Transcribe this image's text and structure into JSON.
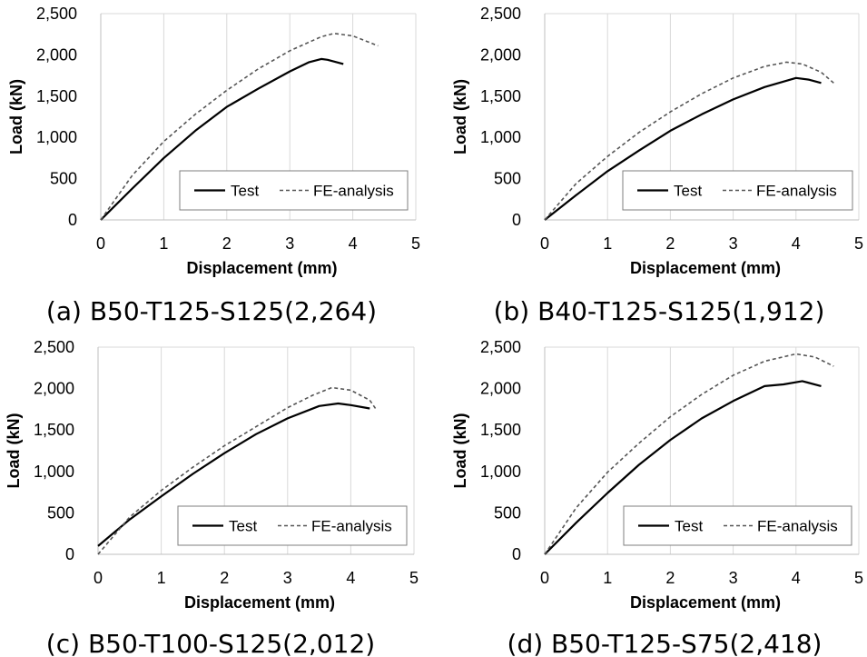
{
  "chart_data": [
    {
      "type": "line",
      "caption": "(a) B50-T125-S125(2,264)",
      "xlabel": "Displacement (mm)",
      "ylabel": "Load (kN)",
      "xlim": [
        0,
        5
      ],
      "ylim": [
        0,
        2500
      ],
      "xticks": [
        "0",
        "1",
        "2",
        "3",
        "4",
        "5"
      ],
      "yticks": [
        "0",
        "500",
        "1,000",
        "1,500",
        "2,000",
        "2,500"
      ],
      "grid": "vertical",
      "legend_position": "lower-right",
      "series": [
        {
          "name": "Test",
          "style": "solid",
          "color": "#000000",
          "x": [
            0,
            0.5,
            1,
            1.5,
            2,
            2.5,
            3,
            3.3,
            3.5,
            3.6,
            3.85
          ],
          "y": [
            0,
            380,
            750,
            1080,
            1370,
            1590,
            1800,
            1910,
            1950,
            1940,
            1890
          ]
        },
        {
          "name": "FE-analysis",
          "style": "dashed",
          "color": "#555555",
          "x": [
            0,
            0.5,
            1,
            1.5,
            2,
            2.5,
            3,
            3.5,
            3.7,
            4.0,
            4.4
          ],
          "y": [
            0,
            540,
            950,
            1280,
            1570,
            1830,
            2050,
            2220,
            2260,
            2230,
            2110
          ]
        }
      ]
    },
    {
      "type": "line",
      "caption": "(b) B40-T125-S125(1,912)",
      "xlabel": "Displacement (mm)",
      "ylabel": "Load (kN)",
      "xlim": [
        0,
        5
      ],
      "ylim": [
        0,
        2500
      ],
      "xticks": [
        "0",
        "1",
        "2",
        "3",
        "4",
        "5"
      ],
      "yticks": [
        "0",
        "500",
        "1,000",
        "1,500",
        "2,000",
        "2,500"
      ],
      "grid": "vertical",
      "legend_position": "lower-right",
      "series": [
        {
          "name": "Test",
          "style": "solid",
          "color": "#000000",
          "x": [
            0,
            0.5,
            1,
            1.5,
            2,
            2.5,
            3,
            3.5,
            4.0,
            4.2,
            4.4
          ],
          "y": [
            0,
            300,
            590,
            840,
            1080,
            1280,
            1460,
            1610,
            1720,
            1700,
            1660
          ]
        },
        {
          "name": "FE-analysis",
          "style": "dashed",
          "color": "#555555",
          "x": [
            0,
            0.5,
            1,
            1.5,
            2,
            2.5,
            3,
            3.5,
            3.85,
            4.1,
            4.4,
            4.6
          ],
          "y": [
            0,
            440,
            770,
            1060,
            1310,
            1530,
            1720,
            1860,
            1912,
            1890,
            1790,
            1660
          ]
        }
      ]
    },
    {
      "type": "line",
      "caption": "(c) B50-T100-S125(2,012)",
      "xlabel": "Displacement (mm)",
      "ylabel": "Load (kN)",
      "xlim": [
        0,
        5
      ],
      "ylim": [
        0,
        2500
      ],
      "xticks": [
        "0",
        "1",
        "2",
        "3",
        "4",
        "5"
      ],
      "yticks": [
        "0",
        "500",
        "1,000",
        "1,500",
        "2,000",
        "2,500"
      ],
      "grid": "vertical",
      "legend_position": "lower-right",
      "series": [
        {
          "name": "Test",
          "style": "solid",
          "color": "#000000",
          "x": [
            0,
            0.5,
            1,
            1.5,
            2,
            2.5,
            3,
            3.5,
            3.8,
            4.0,
            4.3
          ],
          "y": [
            100,
            420,
            700,
            970,
            1220,
            1450,
            1640,
            1790,
            1820,
            1800,
            1760
          ]
        },
        {
          "name": "FE-analysis",
          "style": "dashed",
          "color": "#555555",
          "x": [
            0,
            0.5,
            1,
            1.5,
            2,
            2.5,
            3,
            3.4,
            3.7,
            4.0,
            4.3,
            4.4
          ],
          "y": [
            0,
            450,
            770,
            1050,
            1310,
            1540,
            1770,
            1920,
            2012,
            1980,
            1860,
            1750
          ]
        }
      ]
    },
    {
      "type": "line",
      "caption": "(d) B50-T125-S75(2,418)",
      "xlabel": "Displacement (mm)",
      "ylabel": "Load (kN)",
      "xlim": [
        0,
        5
      ],
      "ylim": [
        0,
        2500
      ],
      "xticks": [
        "0",
        "1",
        "2",
        "3",
        "4",
        "5"
      ],
      "yticks": [
        "0",
        "500",
        "1,000",
        "1,500",
        "2,000",
        "2,500"
      ],
      "grid": "vertical",
      "legend_position": "lower-right",
      "series": [
        {
          "name": "Test",
          "style": "solid",
          "color": "#000000",
          "x": [
            0,
            0.5,
            1,
            1.5,
            2,
            2.5,
            3,
            3.5,
            3.8,
            4.1,
            4.4
          ],
          "y": [
            0,
            380,
            740,
            1080,
            1380,
            1640,
            1850,
            2030,
            2050,
            2090,
            2030
          ]
        },
        {
          "name": "FE-analysis",
          "style": "dashed",
          "color": "#555555",
          "x": [
            0,
            0.5,
            1,
            1.5,
            2,
            2.5,
            3,
            3.5,
            4.0,
            4.3,
            4.6
          ],
          "y": [
            0,
            560,
            990,
            1340,
            1660,
            1930,
            2160,
            2330,
            2418,
            2380,
            2270
          ]
        }
      ]
    }
  ]
}
